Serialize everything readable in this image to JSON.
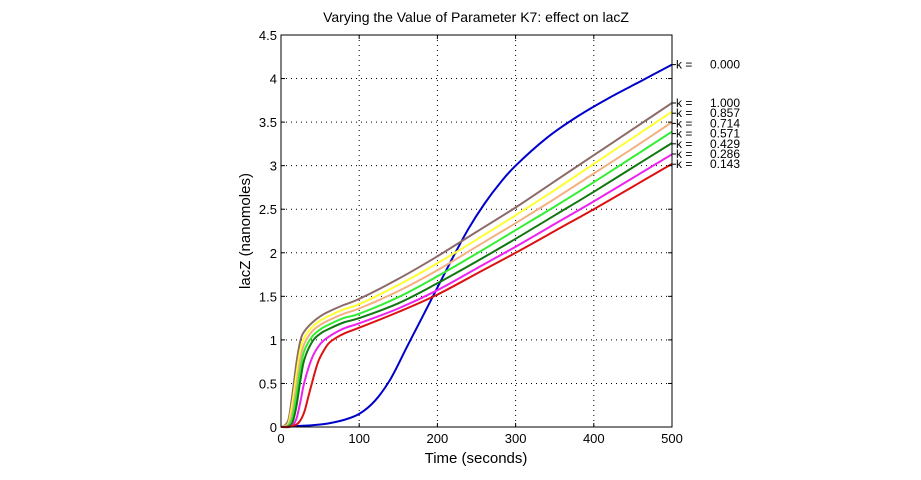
{
  "chart_data": {
    "type": "line",
    "title": "Varying the Value of Parameter K7: effect on lacZ",
    "xlabel": "Time (seconds)",
    "ylabel": "lacZ (nanomoles)",
    "xlim": [
      0,
      500
    ],
    "ylim": [
      0,
      4.5
    ],
    "xticks": [
      0,
      100,
      200,
      300,
      400,
      500
    ],
    "xtick_labels": [
      "0",
      "100",
      "200",
      "300",
      "400",
      "500"
    ],
    "yticks": [
      0,
      0.5,
      1,
      1.5,
      2,
      2.5,
      3,
      3.5,
      4,
      4.5
    ],
    "ytick_labels": [
      "0",
      "0.5",
      "1",
      "1.5",
      "2",
      "2.5",
      "3",
      "3.5",
      "4",
      "4.5"
    ],
    "grid": true,
    "grid_style": "dotted",
    "legend": "right-side end labels",
    "label_prefix": "k =",
    "series": [
      {
        "name": "0.000",
        "color": "#0000cc",
        "x": [
          0,
          20,
          40,
          60,
          80,
          100,
          120,
          140,
          160,
          180,
          200,
          220,
          240,
          260,
          280,
          300,
          340,
          380,
          420,
          460,
          500
        ],
        "y": [
          0,
          0.01,
          0.02,
          0.04,
          0.08,
          0.15,
          0.3,
          0.55,
          0.9,
          1.25,
          1.6,
          1.95,
          2.28,
          2.56,
          2.8,
          3.0,
          3.32,
          3.57,
          3.78,
          3.97,
          4.16
        ]
      },
      {
        "name": "1.000",
        "color": "#8c6a6a",
        "x": [
          0,
          5,
          10,
          15,
          20,
          25,
          30,
          40,
          50,
          60,
          80,
          100,
          150,
          200,
          250,
          300,
          350,
          400,
          450,
          500
        ],
        "y": [
          0,
          0.02,
          0.1,
          0.4,
          0.75,
          1.0,
          1.1,
          1.2,
          1.27,
          1.32,
          1.4,
          1.47,
          1.7,
          1.96,
          2.24,
          2.52,
          2.82,
          3.12,
          3.42,
          3.72
        ]
      },
      {
        "name": "0.857",
        "color": "#ffff33",
        "x": [
          0,
          5,
          10,
          15,
          20,
          25,
          30,
          40,
          50,
          60,
          80,
          100,
          150,
          200,
          250,
          300,
          350,
          400,
          450,
          500
        ],
        "y": [
          0,
          0.01,
          0.06,
          0.3,
          0.62,
          0.9,
          1.03,
          1.15,
          1.22,
          1.27,
          1.35,
          1.41,
          1.63,
          1.88,
          2.15,
          2.43,
          2.72,
          3.02,
          3.32,
          3.62
        ]
      },
      {
        "name": "0.714",
        "color": "#f4b080",
        "x": [
          0,
          5,
          10,
          15,
          20,
          25,
          30,
          40,
          50,
          60,
          80,
          100,
          150,
          200,
          250,
          300,
          350,
          400,
          450,
          500
        ],
        "y": [
          0,
          0.01,
          0.04,
          0.2,
          0.5,
          0.8,
          0.96,
          1.1,
          1.17,
          1.22,
          1.3,
          1.36,
          1.56,
          1.8,
          2.07,
          2.34,
          2.62,
          2.91,
          3.2,
          3.5
        ]
      },
      {
        "name": "0.571",
        "color": "#33ee33",
        "x": [
          0,
          5,
          10,
          15,
          20,
          25,
          30,
          40,
          50,
          60,
          80,
          100,
          150,
          200,
          250,
          300,
          350,
          400,
          450,
          500
        ],
        "y": [
          0,
          0.0,
          0.02,
          0.12,
          0.38,
          0.68,
          0.88,
          1.04,
          1.12,
          1.17,
          1.25,
          1.3,
          1.49,
          1.73,
          1.99,
          2.26,
          2.53,
          2.81,
          3.1,
          3.39
        ]
      },
      {
        "name": "0.429",
        "color": "#117711",
        "x": [
          0,
          5,
          10,
          15,
          20,
          25,
          30,
          40,
          50,
          60,
          80,
          100,
          150,
          200,
          250,
          300,
          350,
          400,
          450,
          500
        ],
        "y": [
          0,
          0.0,
          0.01,
          0.06,
          0.25,
          0.55,
          0.78,
          0.98,
          1.07,
          1.12,
          1.2,
          1.25,
          1.42,
          1.65,
          1.9,
          2.16,
          2.43,
          2.7,
          2.98,
          3.26
        ]
      },
      {
        "name": "0.286",
        "color": "#ee22ee",
        "x": [
          0,
          5,
          10,
          15,
          20,
          25,
          30,
          40,
          50,
          60,
          80,
          100,
          150,
          200,
          250,
          300,
          350,
          400,
          450,
          500
        ],
        "y": [
          0,
          0.0,
          0.0,
          0.02,
          0.1,
          0.3,
          0.52,
          0.8,
          0.95,
          1.03,
          1.13,
          1.19,
          1.36,
          1.57,
          1.82,
          2.07,
          2.33,
          2.59,
          2.86,
          3.13
        ]
      },
      {
        "name": "0.143",
        "color": "#dd1111",
        "x": [
          0,
          10,
          20,
          25,
          30,
          35,
          40,
          45,
          50,
          60,
          70,
          80,
          100,
          150,
          200,
          250,
          300,
          350,
          400,
          450,
          500
        ],
        "y": [
          0,
          0.0,
          0.03,
          0.08,
          0.18,
          0.35,
          0.52,
          0.68,
          0.8,
          0.95,
          1.02,
          1.07,
          1.14,
          1.32,
          1.52,
          1.76,
          2.0,
          2.25,
          2.5,
          2.76,
          3.02
        ]
      }
    ]
  }
}
